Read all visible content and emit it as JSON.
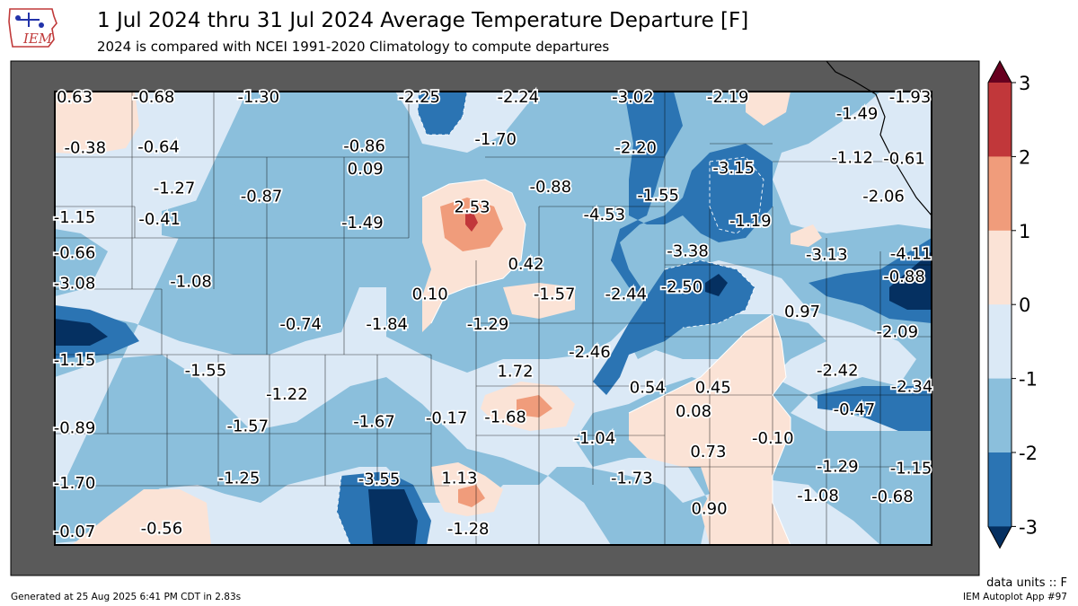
{
  "header": {
    "logo_text": "IEM",
    "title": "1 Jul 2024 thru 31 Jul 2024 Average Temperature Departure [F]",
    "subtitle": "2024 is compared with NCEI 1991-2020 Climatology to compute departures"
  },
  "footer": {
    "units": "data units :: F",
    "generated": "Generated at 25 Aug 2025 6:41 PM CDT in 2.83s",
    "app": "IEM Autoplot App #97"
  },
  "colorbar": {
    "ticks": [
      "3",
      "2",
      "1",
      "0",
      "-1",
      "-2",
      "-3"
    ],
    "colors": [
      "#67001f",
      "#c1373a",
      "#f09c7b",
      "#fbe3d6",
      "#dbe9f6",
      "#8bbfdc",
      "#2b74b3",
      "#053061"
    ]
  },
  "map_colors": {
    "outside": "#5a5a5a",
    "ocean_fill": "#dbe9f6"
  },
  "labels": [
    {
      "text": "0.63",
      "lon": -101.93,
      "lat": 39.88
    },
    {
      "text": "-0.68",
      "lon": -101.04,
      "lat": 39.89
    },
    {
      "text": "-1.30",
      "lon": -99.97,
      "lat": 39.92
    },
    {
      "text": "-2.25",
      "lon": -98.33,
      "lat": 39.88
    },
    {
      "text": "-2.24",
      "lon": -97.32,
      "lat": 39.89
    },
    {
      "text": "-3.02",
      "lon": -96.15,
      "lat": 39.92
    },
    {
      "text": "-2.19",
      "lon": -95.18,
      "lat": 39.88
    },
    {
      "text": "-1.93",
      "lon": -93.32,
      "lat": 39.92
    },
    {
      "text": "-1.49",
      "lon": -93.86,
      "lat": 39.69
    },
    {
      "text": "-1.70",
      "lon": -97.55,
      "lat": 39.4
    },
    {
      "text": "-0.38",
      "lon": -101.74,
      "lat": 39.3
    },
    {
      "text": "-0.64",
      "lon": -100.99,
      "lat": 39.31
    },
    {
      "text": "-0.86",
      "lon": -98.89,
      "lat": 39.32
    },
    {
      "text": "0.09",
      "lon": -98.88,
      "lat": 39.06
    },
    {
      "text": "-2.20",
      "lon": -96.12,
      "lat": 39.3
    },
    {
      "text": "-1.12",
      "lon": -93.91,
      "lat": 39.19
    },
    {
      "text": "-0.61",
      "lon": -93.38,
      "lat": 39.18
    },
    {
      "text": "-3.15",
      "lon": -95.12,
      "lat": 39.07
    },
    {
      "text": "-1.27",
      "lon": -100.83,
      "lat": 38.84
    },
    {
      "text": "-0.87",
      "lon": -99.94,
      "lat": 38.75
    },
    {
      "text": "-0.88",
      "lon": -96.99,
      "lat": 38.86
    },
    {
      "text": "-1.55",
      "lon": -95.89,
      "lat": 38.76
    },
    {
      "text": "-2.06",
      "lon": -93.59,
      "lat": 38.75
    },
    {
      "text": "2.53",
      "lon": -97.79,
      "lat": 38.63
    },
    {
      "text": "-1.15",
      "lon": -101.97,
      "lat": 38.51
    },
    {
      "text": "-0.41",
      "lon": -100.98,
      "lat": 38.49
    },
    {
      "text": "-1.49",
      "lon": -98.91,
      "lat": 38.45
    },
    {
      "text": "-4.53",
      "lon": -96.44,
      "lat": 38.54
    },
    {
      "text": "-1.19",
      "lon": -94.95,
      "lat": 38.47
    },
    {
      "text": "-0.66",
      "lon": -101.96,
      "lat": 38.11
    },
    {
      "text": "-3.38",
      "lon": -95.59,
      "lat": 38.13
    },
    {
      "text": "-3.13",
      "lon": -94.17,
      "lat": 38.09
    },
    {
      "text": "-4.11",
      "lon": -93.31,
      "lat": 38.1
    },
    {
      "text": "0.42",
      "lon": -97.24,
      "lat": 37.98
    },
    {
      "text": "-0.88",
      "lon": -93.38,
      "lat": 37.84
    },
    {
      "text": "-3.08",
      "lon": -101.93,
      "lat": 37.76
    },
    {
      "text": "-1.08",
      "lon": -100.66,
      "lat": 37.78
    },
    {
      "text": "0.10",
      "lon": -98.22,
      "lat": 37.64
    },
    {
      "text": "-1.57",
      "lon": -96.95,
      "lat": 37.64
    },
    {
      "text": "-2.44",
      "lon": -96.22,
      "lat": 37.64
    },
    {
      "text": "-2.50",
      "lon": -95.65,
      "lat": 37.72
    },
    {
      "text": "0.97",
      "lon": -94.42,
      "lat": 37.44
    },
    {
      "text": "-0.74",
      "lon": -99.54,
      "lat": 37.3
    },
    {
      "text": "-1.84",
      "lon": -98.66,
      "lat": 37.3
    },
    {
      "text": "-1.29",
      "lon": -97.63,
      "lat": 37.3
    },
    {
      "text": "-2.09",
      "lon": -93.45,
      "lat": 37.21
    },
    {
      "text": "-2.46",
      "lon": -96.59,
      "lat": 36.98
    },
    {
      "text": "-1.15",
      "lon": -101.93,
      "lat": 36.89
    },
    {
      "text": "-1.55",
      "lon": -100.51,
      "lat": 36.77
    },
    {
      "text": "-2.42",
      "lon": -94.06,
      "lat": 36.77
    },
    {
      "text": "1.72",
      "lon": -97.35,
      "lat": 36.76
    },
    {
      "text": "-2.34",
      "lon": -93.28,
      "lat": 36.59
    },
    {
      "text": "0.54",
      "lon": -96.0,
      "lat": 36.58
    },
    {
      "text": "0.45",
      "lon": -95.33,
      "lat": 36.58
    },
    {
      "text": "-1.22",
      "lon": -99.68,
      "lat": 36.5
    },
    {
      "text": "0.08",
      "lon": -95.53,
      "lat": 36.31
    },
    {
      "text": "-0.47",
      "lon": -93.89,
      "lat": 36.33
    },
    {
      "text": "-1.67",
      "lon": -98.79,
      "lat": 36.19
    },
    {
      "text": "-0.17",
      "lon": -98.05,
      "lat": 36.23
    },
    {
      "text": "-1.68",
      "lon": -97.45,
      "lat": 36.24
    },
    {
      "text": "-0.89",
      "lon": -101.91,
      "lat": 36.12
    },
    {
      "text": "-1.57",
      "lon": -100.08,
      "lat": 36.14
    },
    {
      "text": "-1.04",
      "lon": -96.54,
      "lat": 36.0
    },
    {
      "text": "-0.10",
      "lon": -94.72,
      "lat": 36.0
    },
    {
      "text": "0.73",
      "lon": -95.38,
      "lat": 35.85
    },
    {
      "text": "-1.29",
      "lon": -94.06,
      "lat": 35.68
    },
    {
      "text": "-1.15",
      "lon": -93.31,
      "lat": 35.66
    },
    {
      "text": "-3.55",
      "lon": -98.74,
      "lat": 35.54
    },
    {
      "text": "1.13",
      "lon": -97.92,
      "lat": 35.55
    },
    {
      "text": "-1.73",
      "lon": -96.16,
      "lat": 35.55
    },
    {
      "text": "-1.25",
      "lon": -100.17,
      "lat": 35.55
    },
    {
      "text": "-1.70",
      "lon": -101.97,
      "lat": 35.49
    },
    {
      "text": "-1.08",
      "lon": -94.26,
      "lat": 35.35
    },
    {
      "text": "-0.68",
      "lon": -93.5,
      "lat": 35.34
    },
    {
      "text": "0.90",
      "lon": -95.37,
      "lat": 35.2
    },
    {
      "text": "-0.56",
      "lon": -100.96,
      "lat": 34.98
    },
    {
      "text": "-1.28",
      "lon": -97.83,
      "lat": 34.97
    },
    {
      "text": "-0.07",
      "lon": -102.18,
      "lat": 34.94
    }
  ]
}
